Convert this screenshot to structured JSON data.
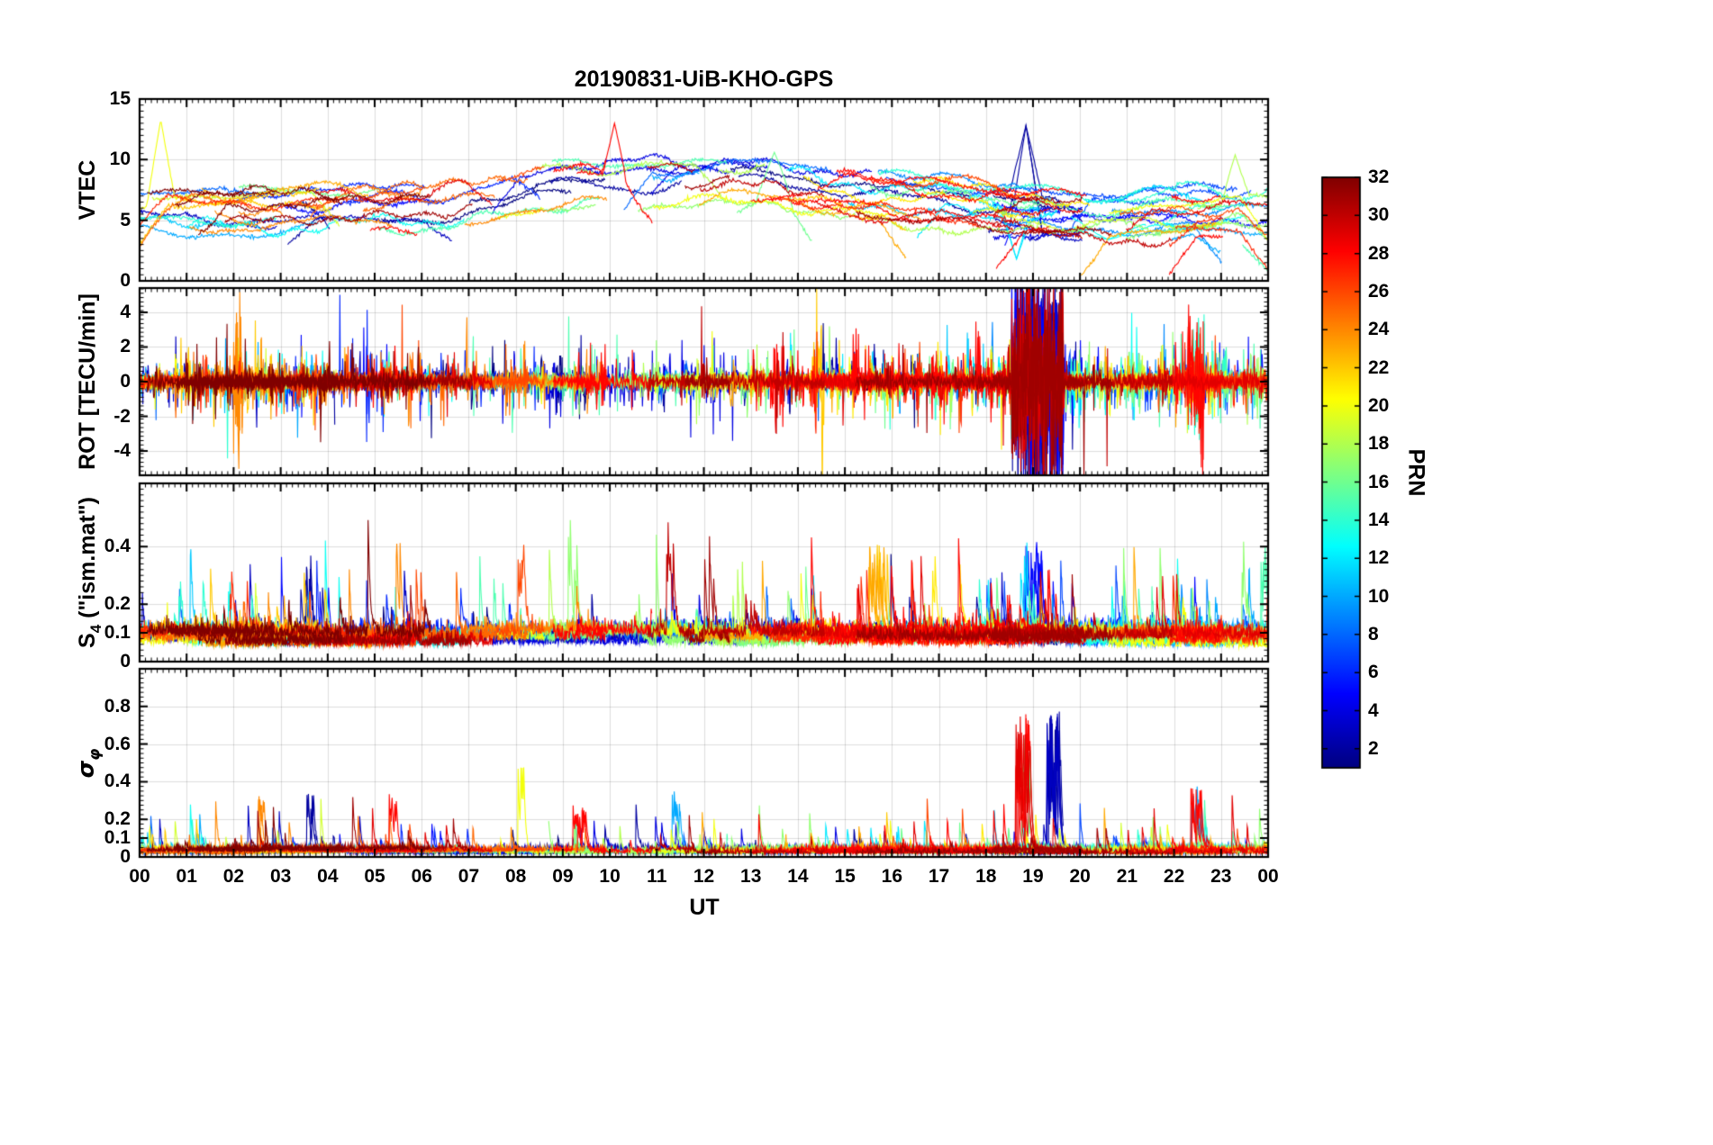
{
  "figure": {
    "background": "#ffffff",
    "text_color": "#000000"
  },
  "chart_data": {
    "type": "line",
    "title": "20190831-UiB-KHO-GPS",
    "xlabel": "UT",
    "x_range": [
      0,
      24
    ],
    "x_tick_labels": [
      "00",
      "01",
      "02",
      "03",
      "04",
      "05",
      "06",
      "07",
      "08",
      "09",
      "10",
      "11",
      "12",
      "13",
      "14",
      "15",
      "16",
      "17",
      "18",
      "19",
      "20",
      "21",
      "22",
      "23",
      "00"
    ],
    "x_minor_step": 0.125,
    "grid": true,
    "series_unit": "one line per GPS satellite (PRN 1-32), colored by PRN with jet colormap",
    "colorbar": {
      "label": "PRN",
      "range": [
        1,
        32
      ],
      "ticks": [
        2,
        4,
        6,
        8,
        10,
        12,
        14,
        16,
        18,
        20,
        22,
        24,
        26,
        28,
        30,
        32
      ],
      "tick_labels": [
        "2",
        "4",
        "6",
        "8",
        "10",
        "12",
        "14",
        "16",
        "18",
        "20",
        "22",
        "24",
        "26",
        "28",
        "30",
        "32"
      ],
      "colormap": "jet",
      "jet_stops": [
        "#00008f",
        "#0000ff",
        "#00ffff",
        "#80ff80",
        "#ffff00",
        "#ff0000",
        "#800000"
      ]
    },
    "panels": [
      {
        "id": "vtec",
        "ylabel_parts": {
          "main": "VTEC",
          "sub": "",
          "rest": ""
        },
        "ylim": [
          0,
          15
        ],
        "yticks": [
          0,
          5,
          10,
          15
        ],
        "ytick_labels": [
          "0",
          "5",
          "10",
          "15"
        ],
        "minor_step": 0.5,
        "clip": [
          0.5,
          14.6
        ],
        "summary": "Vertical TEC for all PRNs, mostly 4-9 TECU; broad maximum ~8-10 TECU between 08-15 UT; isolated peaks to ~13 TECU near 00:30, 10:00 and 18:50 UT; cyan traces dip to ~2-3 TECU near 18:40-21:30 UT",
        "gen": {
          "mode": "vtec",
          "dt": 0.02,
          "baseline": [
            [
              0,
              5.6
            ],
            [
              3,
              5.7
            ],
            [
              6,
              6.1
            ],
            [
              8,
              7.5
            ],
            [
              9.5,
              8.4
            ],
            [
              12,
              8.1
            ],
            [
              13.5,
              8.3
            ],
            [
              15,
              7.3
            ],
            [
              16.5,
              6.6
            ],
            [
              18,
              6.0
            ],
            [
              19.5,
              5.5
            ],
            [
              21,
              5.3
            ],
            [
              22.5,
              5.7
            ],
            [
              24,
              5.9
            ]
          ],
          "offset_range": [
            -2.2,
            1.8
          ],
          "wave1": 0.45,
          "wave2": 0.2,
          "jitter": 0.08,
          "edge_drop_prob": 0.35,
          "edge_drop_max": 3.5,
          "features": [
            {
              "prn": 20,
              "t": 0.45,
              "peak": 13.3,
              "w": 0.3
            },
            {
              "prn": 28,
              "t": 10.1,
              "peak": 13.0,
              "w": 0.25
            },
            {
              "prn": 2,
              "t": 18.85,
              "peak": 12.8,
              "w": 0.35
            },
            {
              "prn": 12,
              "t": 18.65,
              "peak": 1.8,
              "w": 0.3
            },
            {
              "prn": 13,
              "t": 20.6,
              "peak": 3.4,
              "w": 1.2
            },
            {
              "prn": 16,
              "t": 13.5,
              "peak": 10.6,
              "w": 0.4
            },
            {
              "prn": 18,
              "t": 23.3,
              "peak": 10.4,
              "w": 0.3
            }
          ]
        }
      },
      {
        "id": "rot",
        "ylabel_parts": {
          "main": "ROT [TECU/min]",
          "sub": "",
          "rest": ""
        },
        "ylim": [
          -5.4,
          5.4
        ],
        "yticks": [
          -4,
          -2,
          0,
          2,
          4
        ],
        "ytick_labels": [
          "-4",
          "-2",
          "0",
          "2",
          "4"
        ],
        "minor_step": 0.25,
        "clip": [
          -7,
          7
        ],
        "summary": "Rate of TEC; quiet-time noise band ~±0.5 TECU/min with frequent bursts to ±2-4; strongest activity (clipped spikes beyond ±5) between 18:30-19:40 UT, mainly dark-blue PRNs",
        "gen": {
          "mode": "rot",
          "dt": 0.01,
          "base_env": 0.22,
          "burst_prob": 0.03,
          "burst_amp": 1.5,
          "burst_decay": 0.75,
          "events": [
            {
              "window": [
                18.55,
                19.65
              ],
              "prns": [
                1,
                2,
                3,
                4,
                5,
                29,
                30,
                31
              ],
              "amp": 3.2
            },
            {
              "window": [
                22.3,
                22.65
              ],
              "prns": [
                27,
                28,
                14
              ],
              "amp": 2.0
            },
            {
              "window": [
                2.0,
                2.2
              ],
              "prns": [
                24
              ],
              "amp": 2.6
            },
            {
              "window": [
                13.4,
                13.7
              ],
              "prns": [
                28
              ],
              "amp": 2.2
            },
            {
              "window": [
                14.3,
                14.55
              ],
              "prns": [
                22
              ],
              "amp": 2.6
            }
          ]
        }
      },
      {
        "id": "s4",
        "ylabel_parts": {
          "main": "S",
          "sub": "4",
          "rest": " (\"ism.mat\")"
        },
        "ylim": [
          0,
          0.62
        ],
        "yticks": [
          0,
          0.1,
          0.2,
          0.4
        ],
        "ytick_labels": [
          "0",
          "0.1",
          "0.2",
          "0.4"
        ],
        "minor_step": 0.02,
        "clip": [
          0.02,
          0.6
        ],
        "summary": "Amplitude scintillation index mostly 0.05-0.15 with many isolated spikes to 0.3-0.55 throughout the day (e.g. ~0.57 orange at 05:30, ~0.55 dark-red at 11:15, ~0.5 green at 09:10)",
        "gen": {
          "mode": "spiky",
          "dt": 0.01,
          "base_min": 0.05,
          "base_max": 0.1,
          "jitter": 0.022,
          "spike_prob": 0.012,
          "spike_amp": 0.5,
          "spike_decay": 0.8,
          "events": [
            {
              "window": [
                5.45,
                5.6
              ],
              "prns": [
                24
              ],
              "amp": 0.5
            },
            {
              "window": [
                3.5,
                3.65
              ],
              "prns": [
                2
              ],
              "amp": 0.42
            },
            {
              "window": [
                8.0,
                8.2
              ],
              "prns": [
                26
              ],
              "amp": 0.38
            },
            {
              "window": [
                9.1,
                9.3
              ],
              "prns": [
                17
              ],
              "amp": 0.5
            },
            {
              "window": [
                11.2,
                11.4
              ],
              "prns": [
                30
              ],
              "amp": 0.5
            },
            {
              "window": [
                12.0,
                12.15
              ],
              "prns": [
                31
              ],
              "amp": 0.45
            },
            {
              "window": [
                15.5,
                15.9
              ],
              "prns": [
                22,
                23
              ],
              "amp": 0.4
            },
            {
              "window": [
                12.7,
                12.9
              ],
              "prns": [
                18
              ],
              "amp": 0.38
            },
            {
              "window": [
                18.8,
                19.2
              ],
              "prns": [
                5
              ],
              "amp": 0.36
            },
            {
              "window": [
                23.85,
                24.0
              ],
              "prns": [
                15
              ],
              "amp": 0.4
            }
          ]
        }
      },
      {
        "id": "sigma-phi",
        "ylabel_parts": {
          "main": "σ",
          "sub": "φ",
          "rest": ""
        },
        "ylim": [
          0,
          1.0
        ],
        "yticks": [
          0,
          0.1,
          0.2,
          0.4,
          0.6,
          0.8
        ],
        "ytick_labels": [
          "0",
          "0.1",
          "0.2",
          "0.4",
          "0.6",
          "0.8"
        ],
        "minor_step": 0.025,
        "clip": [
          0.005,
          1.15
        ],
        "summary": "Phase scintillation index mostly <0.1; spikes 0.2-0.45 through the day; major event 18:40-19:40 UT with red/green/blue PRNs reaching ~0.95 (clipped at panel top); ~0.63 yellow at 08:00 and ~0.45 spikes near 22:25 UT",
        "gen": {
          "mode": "spiky",
          "dt": 0.01,
          "base_min": 0.015,
          "base_max": 0.04,
          "jitter": 0.012,
          "spike_prob": 0.01,
          "spike_amp": 0.4,
          "spike_decay": 0.78,
          "events": [
            {
              "window": [
                18.62,
                18.95
              ],
              "prns": [
                28,
                29
              ],
              "amp": 0.95
            },
            {
              "window": [
                18.75,
                19.0
              ],
              "prns": [
                16
              ],
              "amp": 0.85
            },
            {
              "window": [
                19.3,
                19.6
              ],
              "prns": [
                2,
                3
              ],
              "amp": 0.95
            },
            {
              "window": [
                22.35,
                22.6
              ],
              "prns": [
                28,
                10
              ],
              "amp": 0.42
            },
            {
              "window": [
                3.55,
                3.75
              ],
              "prns": [
                2
              ],
              "amp": 0.42
            },
            {
              "window": [
                5.3,
                5.5
              ],
              "prns": [
                28
              ],
              "amp": 0.42
            },
            {
              "window": [
                8.0,
                8.2
              ],
              "prns": [
                20
              ],
              "amp": 0.6
            },
            {
              "window": [
                2.5,
                2.65
              ],
              "prns": [
                24
              ],
              "amp": 0.36
            },
            {
              "window": [
                9.2,
                9.5
              ],
              "prns": [
                28
              ],
              "amp": 0.3
            },
            {
              "window": [
                11.3,
                11.5
              ],
              "prns": [
                10
              ],
              "amp": 0.45
            }
          ]
        }
      }
    ],
    "generation": {
      "seed": 20190831,
      "prn_count": 32,
      "mix": [
        3,
        5,
        7,
        11
      ],
      "pass_half_min": 1.3,
      "pass_half_max": 3.0,
      "extra_pass_prob": 0.55
    }
  }
}
